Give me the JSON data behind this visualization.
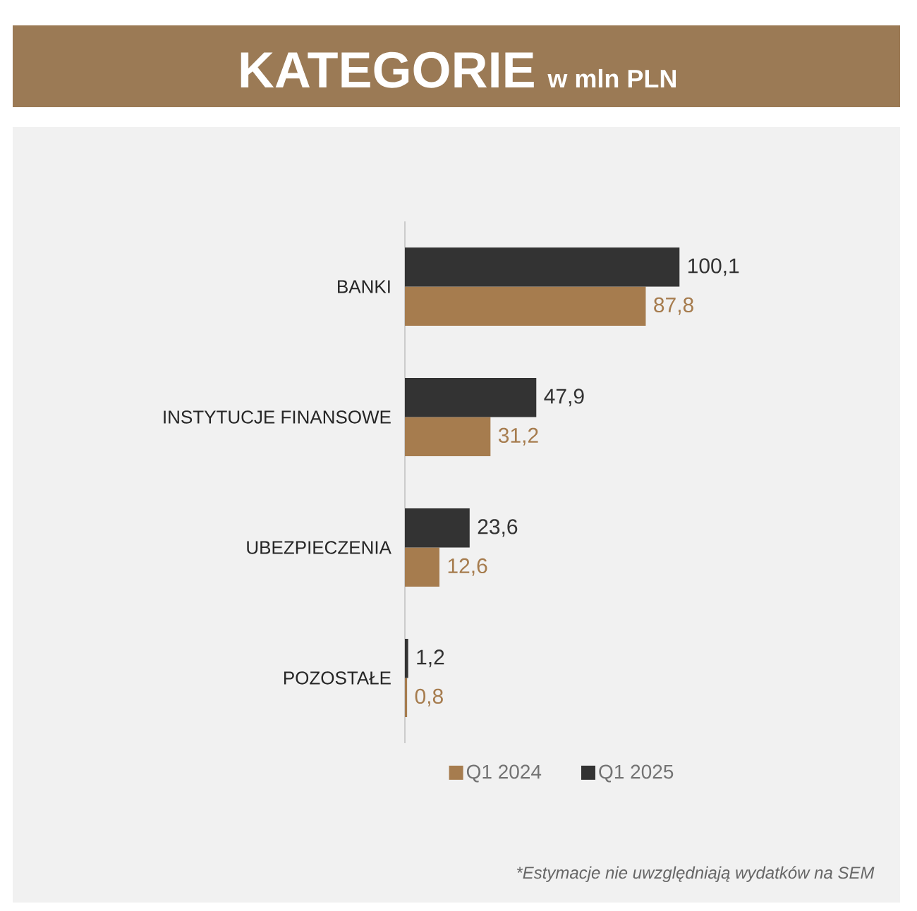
{
  "chart_data": {
    "type": "bar",
    "orientation": "horizontal",
    "title": "KATEGORIE",
    "subtitle": "w mln PLN",
    "categories": [
      "BANKI",
      "INSTYTUCJE FINANSOWE",
      "UBEZPIECZENIA",
      "POZOSTAŁE"
    ],
    "series": [
      {
        "name": "Q1 2024",
        "color": "#a67c4e",
        "values": [
          87.8,
          31.2,
          12.6,
          0.8
        ],
        "value_labels": [
          "87,8",
          "31,2",
          "12,6",
          "0,8"
        ]
      },
      {
        "name": "Q1 2025",
        "color": "#333333",
        "values": [
          100.1,
          47.9,
          23.6,
          1.2
        ],
        "value_labels": [
          "100,1",
          "47,9",
          "23,6",
          "1,2"
        ]
      }
    ],
    "xlim": [
      0,
      180
    ],
    "legend": "bottom",
    "annotations": [
      "*Estymacje nie uwzględniają wydatków na SEM"
    ]
  }
}
